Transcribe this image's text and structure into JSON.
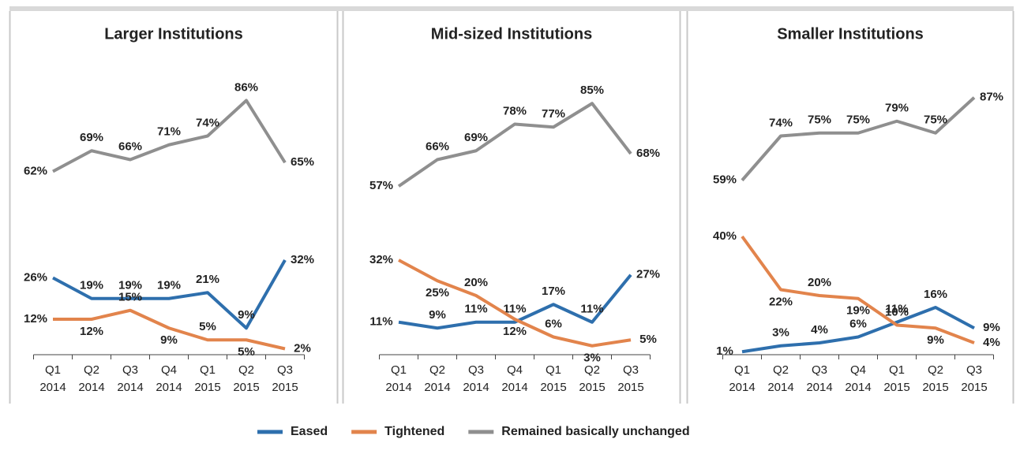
{
  "chart_data": [
    {
      "type": "line",
      "title": "Larger Institutions",
      "categories": [
        "Q1 2014",
        "Q2 2014",
        "Q3 2014",
        "Q4 2014",
        "Q1 2015",
        "Q2 2015",
        "Q3 2015"
      ],
      "ylim": [
        0,
        100
      ],
      "series": [
        {
          "name": "Eased",
          "color": "#2e6fad",
          "values": [
            26,
            19,
            19,
            19,
            21,
            9,
            32
          ],
          "value_labels": [
            "26%",
            "19%",
            "19%",
            "19%",
            "21%",
            "9%",
            "32%"
          ]
        },
        {
          "name": "Tightened",
          "color": "#e2844c",
          "values": [
            12,
            12,
            15,
            9,
            5,
            5,
            2
          ],
          "value_labels": [
            "12%",
            "12%",
            "15%",
            "9%",
            "5%",
            "5%",
            "2%"
          ]
        },
        {
          "name": "Remained basically unchanged",
          "color": "#8f8f8f",
          "values": [
            62,
            69,
            66,
            71,
            74,
            86,
            65
          ],
          "value_labels": [
            "62%",
            "69%",
            "66%",
            "71%",
            "74%",
            "86%",
            "65%"
          ]
        }
      ]
    },
    {
      "type": "line",
      "title": "Mid-sized Institutions",
      "categories": [
        "Q1 2014",
        "Q2 2014",
        "Q3 2014",
        "Q4 2014",
        "Q1 2015",
        "Q2 2015",
        "Q3 2015"
      ],
      "ylim": [
        0,
        100
      ],
      "series": [
        {
          "name": "Eased",
          "color": "#2e6fad",
          "values": [
            11,
            9,
            11,
            11,
            17,
            11,
            27
          ],
          "value_labels": [
            "11%",
            "9%",
            "11%",
            "11%",
            "17%",
            "11%",
            "27%"
          ]
        },
        {
          "name": "Tightened",
          "color": "#e2844c",
          "values": [
            32,
            25,
            20,
            12,
            6,
            3,
            5
          ],
          "value_labels": [
            "32%",
            "25%",
            "20%",
            "12%",
            "6%",
            "3%",
            "5%"
          ]
        },
        {
          "name": "Remained basically unchanged",
          "color": "#8f8f8f",
          "values": [
            57,
            66,
            69,
            78,
            77,
            85,
            68
          ],
          "value_labels": [
            "57%",
            "66%",
            "69%",
            "78%",
            "77%",
            "85%",
            "68%"
          ]
        }
      ]
    },
    {
      "type": "line",
      "title": "Smaller Institutions",
      "categories": [
        "Q1 2014",
        "Q2 2014",
        "Q3 2014",
        "Q4 2014",
        "Q1 2015",
        "Q2 2015",
        "Q3 2015"
      ],
      "ylim": [
        0,
        100
      ],
      "series": [
        {
          "name": "Eased",
          "color": "#2e6fad",
          "values": [
            1,
            3,
            4,
            6,
            11,
            16,
            9
          ],
          "value_labels": [
            "1%",
            "3%",
            "4%",
            "6%",
            "11%",
            "16%",
            "9%"
          ]
        },
        {
          "name": "Tightened",
          "color": "#e2844c",
          "values": [
            40,
            22,
            20,
            19,
            10,
            9,
            4
          ],
          "value_labels": [
            "40%",
            "22%",
            "20%",
            "19%",
            "10%",
            "9%",
            "4%"
          ]
        },
        {
          "name": "Remained basically unchanged",
          "color": "#8f8f8f",
          "values": [
            59,
            74,
            75,
            75,
            79,
            75,
            87
          ],
          "value_labels": [
            "59%",
            "74%",
            "75%",
            "75%",
            "79%",
            "75%",
            "87%"
          ]
        }
      ]
    }
  ]
}
